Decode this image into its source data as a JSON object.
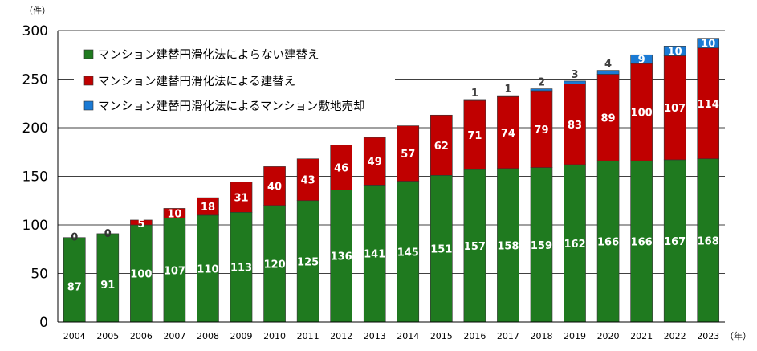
{
  "chart_data": {
    "type": "bar",
    "stacked": true,
    "y_unit_label": "（件）",
    "x_unit_label": "（年）",
    "ylim": [
      0,
      300
    ],
    "yticks": [
      0,
      50,
      100,
      150,
      200,
      250,
      300
    ],
    "grid": true,
    "legend_position": "top-left",
    "categories": [
      "2004",
      "2005",
      "2006",
      "2007",
      "2008",
      "2009",
      "2010",
      "2011",
      "2012",
      "2013",
      "2014",
      "2015",
      "2016",
      "2017",
      "2018",
      "2019",
      "2020",
      "2021",
      "2022",
      "2023"
    ],
    "series": [
      {
        "name": "マンション建替円滑化法によらない建替え",
        "color": "#1f7a1f",
        "values": [
          87,
          91,
          100,
          107,
          110,
          113,
          120,
          125,
          136,
          141,
          145,
          151,
          157,
          158,
          159,
          162,
          166,
          166,
          167,
          168
        ]
      },
      {
        "name": "マンション建替円滑化法による建替え",
        "color": "#c00000",
        "values": [
          0,
          0,
          5,
          10,
          18,
          31,
          40,
          43,
          46,
          49,
          57,
          62,
          71,
          74,
          79,
          83,
          89,
          100,
          107,
          114
        ]
      },
      {
        "name": "マンション建替円滑化法によるマンション敷地売却",
        "color": "#1a7ad4",
        "values": [
          0,
          0,
          0,
          0,
          0,
          0,
          0,
          0,
          0,
          0,
          0,
          0,
          1,
          1,
          2,
          3,
          4,
          9,
          10,
          10
        ]
      }
    ],
    "data_labels": {
      "series0": [
        "87",
        "91",
        "100",
        "107",
        "110",
        "113",
        "120",
        "125",
        "136",
        "141",
        "145",
        "151",
        "157",
        "158",
        "159",
        "162",
        "166",
        "166",
        "167",
        "168"
      ],
      "series1": [
        "0",
        "0",
        "5",
        "10",
        "18",
        "31",
        "40",
        "43",
        "46",
        "49",
        "57",
        "62",
        "71",
        "74",
        "79",
        "83",
        "89",
        "100",
        "107",
        "114"
      ],
      "series2": [
        "",
        "",
        "",
        "",
        "",
        "",
        "",
        "",
        "",
        "",
        "",
        "",
        "1",
        "1",
        "2",
        "3",
        "4",
        "9",
        "10",
        "10"
      ]
    }
  }
}
